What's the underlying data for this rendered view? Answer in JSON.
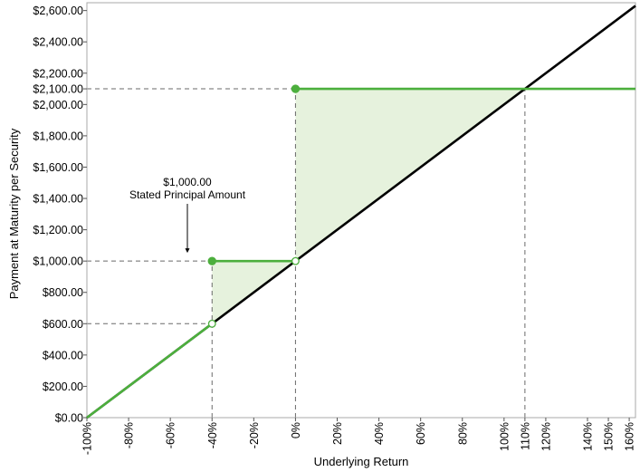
{
  "chart_data": {
    "type": "line",
    "xlabel": "Underlying Return",
    "ylabel": "Payment at Maturity per Security",
    "xlim": [
      -100,
      163
    ],
    "ylim": [
      0,
      2650
    ],
    "x_ticks": [
      -100,
      -80,
      -60,
      -40,
      -20,
      0,
      20,
      40,
      60,
      80,
      100,
      110,
      120,
      140,
      150,
      160
    ],
    "x_tick_labels": [
      "-100%",
      "-80%",
      "-60%",
      "-40%",
      "-20%",
      "0%",
      "20%",
      "40%",
      "60%",
      "80%",
      "100%",
      "110%",
      "120%",
      "140%",
      "150%",
      "160%"
    ],
    "y_ticks": [
      0,
      200,
      400,
      600,
      800,
      1000,
      1200,
      1400,
      1600,
      1800,
      2000,
      2100,
      2200,
      2400,
      2600
    ],
    "y_tick_labels": [
      "$0.00",
      "$200.00",
      "$400.00",
      "$600.00",
      "$800.00",
      "$1,000.00",
      "$1,200.00",
      "$1,400.00",
      "$1,600.00",
      "$1,800.00",
      "$2,000.00",
      "$2,100.00",
      "$2,200.00",
      "$2,400.00",
      "$2,600.00"
    ],
    "grid": false,
    "series": [
      {
        "color": "#000000",
        "points": [
          [
            -100,
            0
          ],
          [
            163,
            2630
          ]
        ]
      },
      {
        "color": "#4caf3d",
        "segments": [
          [
            [
              -100,
              0
            ],
            [
              -40,
              600
            ]
          ],
          [
            [
              -40,
              1000
            ],
            [
              0,
              1000
            ]
          ],
          [
            [
              0,
              2100
            ],
            [
              163,
              2100
            ]
          ]
        ],
        "filled_markers": [
          [
            -40,
            1000
          ],
          [
            0,
            2100
          ]
        ],
        "open_markers": [
          [
            -40,
            600
          ],
          [
            0,
            1000
          ]
        ]
      }
    ],
    "shaded_regions": [
      [
        [
          -40,
          600
        ],
        [
          -40,
          1000
        ],
        [
          0,
          1000
        ]
      ],
      [
        [
          0,
          1000
        ],
        [
          0,
          2100
        ],
        [
          110,
          2100
        ]
      ]
    ],
    "reference_lines": [
      {
        "y": 600,
        "x_to": -40
      },
      {
        "y": 1000,
        "x_to": -40
      },
      {
        "y": 2100,
        "x_to": 0
      },
      {
        "x": -40,
        "y_to": 1000
      },
      {
        "x": 0,
        "y_to": 2100
      },
      {
        "x": 110,
        "y_to": 2100
      }
    ],
    "annotation": {
      "lines": [
        "$1,000.00",
        "Stated Principal Amount"
      ],
      "arrow_to": [
        -40,
        1000
      ]
    },
    "colors": {
      "line": "#000000",
      "payoff": "#4caf3d",
      "fill": "#e6f2dd",
      "reference": "#6a6a6a"
    }
  }
}
